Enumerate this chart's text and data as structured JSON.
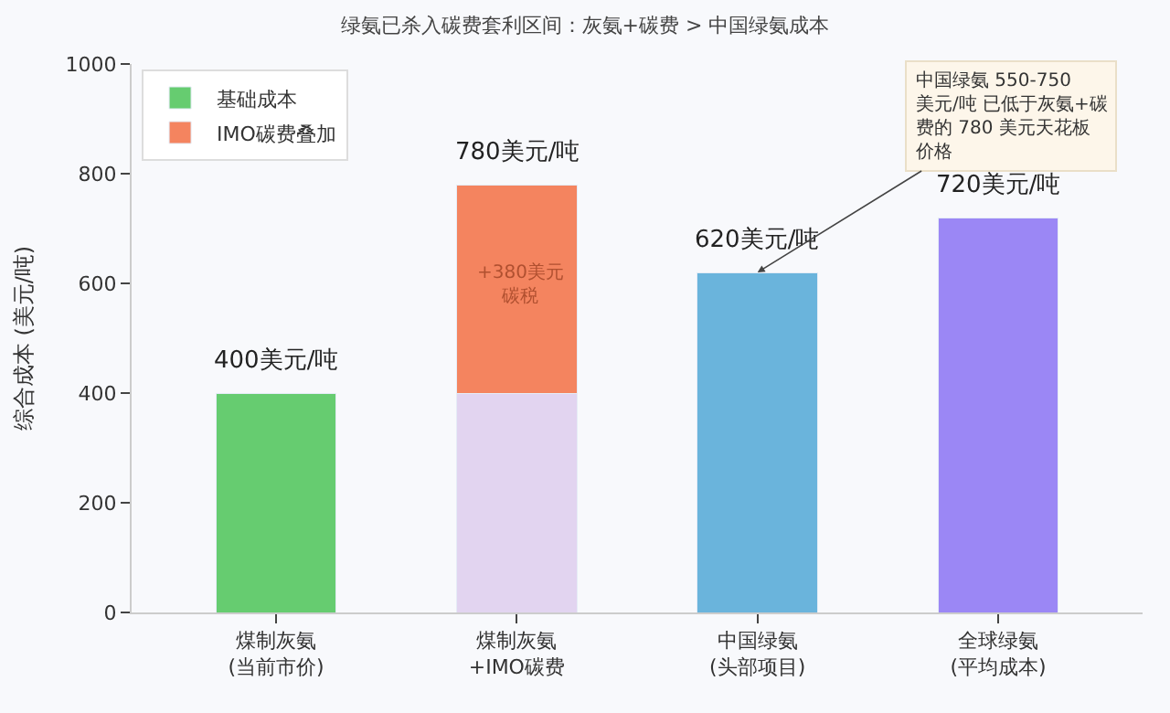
{
  "chart_data": {
    "type": "bar",
    "stacked": true,
    "title": "绿氨已杀入碳费套利区间：灰氨+碳费 > 中国绿氨成本",
    "ylabel": "综合成本 (美元/吨)",
    "categories": [
      "煤制灰氨\n(当前市价)",
      "煤制灰氨\n+IMO碳费",
      "中国绿氨\n(头部项目)",
      "全球绿氨\n(平均成本)"
    ],
    "series": [
      {
        "name": "基础成本",
        "color": "#66cc70",
        "colors": [
          "#66cc70",
          "#e2d4f0",
          "#6ab4dc",
          "#9b87f5"
        ],
        "values": [
          400,
          400,
          620,
          720
        ]
      },
      {
        "name": "IMO碳费叠加",
        "color": "#f4845f",
        "values": [
          null,
          380,
          null,
          null
        ]
      }
    ],
    "totals": [
      "400美元/吨",
      "780美元/吨",
      "620美元/吨",
      "720美元/吨"
    ],
    "annotations": [
      "+380美元碳税",
      {
        "text": "中国绿氨 550-750美元/吨 已低于灰氨+碳费的 780 美元天花板价格",
        "x": "中国绿氨\n(头部项目)",
        "y": 620
      }
    ],
    "ylim": [
      0,
      1000
    ],
    "yticks": [
      0,
      200,
      400,
      600,
      800,
      1000
    ],
    "grid": false,
    "legend": "top left"
  }
}
